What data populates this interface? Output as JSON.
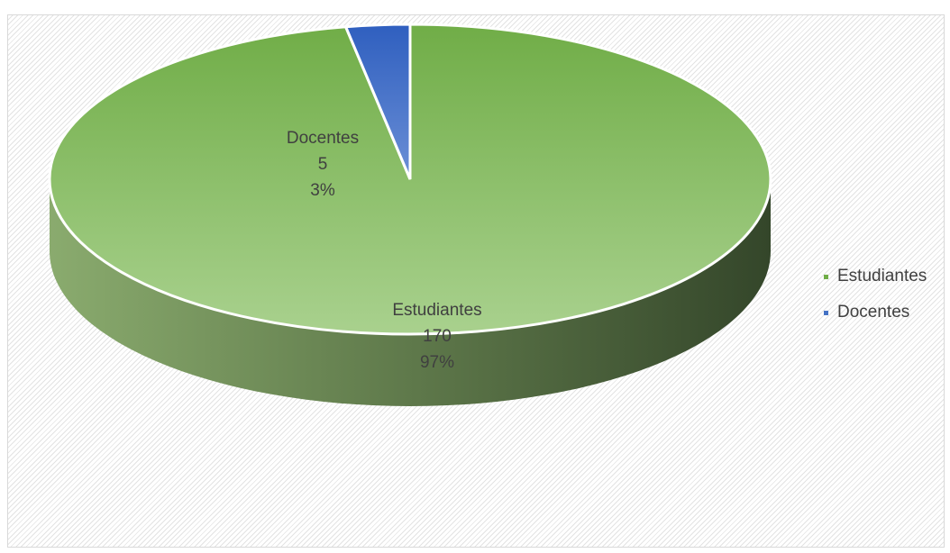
{
  "chart_data": {
    "type": "pie",
    "title": "",
    "categories": [
      "Estudiantes",
      "Docentes"
    ],
    "values": [
      170,
      5
    ],
    "percentages": [
      "97%",
      "3%"
    ],
    "colors": [
      "#70ad47",
      "#4472c4"
    ],
    "legend_position": "right",
    "data_labels": [
      {
        "category": "Estudiantes",
        "value": "170",
        "percent": "97%"
      },
      {
        "category": "Docentes",
        "value": "5",
        "percent": "3%"
      }
    ]
  },
  "legend": {
    "items": [
      {
        "label": "Estudiantes",
        "color": "#70ad47"
      },
      {
        "label": "Docentes",
        "color": "#4472c4"
      }
    ]
  }
}
